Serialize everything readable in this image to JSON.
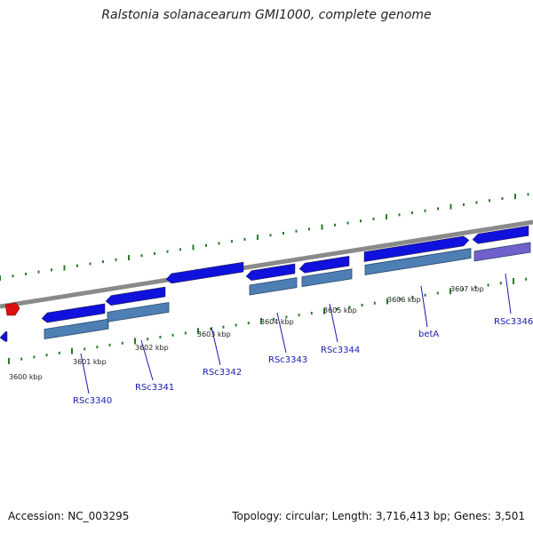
{
  "title": "Ralstonia solanacearum GMI1000, complete genome",
  "footer": {
    "accession": "Accession: NC_003295",
    "summary": "Topology: circular; Length: 3,716,413 bp; Genes: 3,501"
  },
  "colors": {
    "backbone": "#8a8a8a",
    "gene_fwd": "#1111dd",
    "cds_light": "#4d7fb4",
    "gene_purple": "#7060cc",
    "tick": "#2a7a2a",
    "label_line": "#1a1ab0",
    "red_feature": "#dd1111"
  },
  "ruler": [
    "3600 kbp",
    "3601 kbp",
    "3602 kbp",
    "3603 kbp",
    "3604 kbp",
    "3605 kbp",
    "3606 kbp",
    "3607 kbp"
  ],
  "genes": [
    "RSc3340",
    "RSc3341",
    "RSc3342",
    "RSc3343",
    "RSc3344",
    "betA",
    "RSc3346"
  ]
}
